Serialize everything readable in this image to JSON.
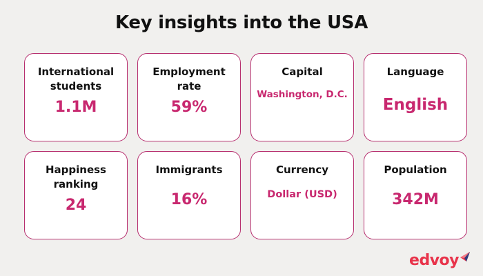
{
  "title": "Key insights into the USA",
  "cards": [
    {
      "label": "International students",
      "value": "1.1M"
    },
    {
      "label": "Employment rate",
      "value": "59%"
    },
    {
      "label": "Capital",
      "value": "Washington, D.C."
    },
    {
      "label": "Language",
      "value": "English"
    },
    {
      "label": "Happiness ranking",
      "value": "24"
    },
    {
      "label": "Immigrants",
      "value": "16%"
    },
    {
      "label": "Currency",
      "value": "Dollar (USD)"
    },
    {
      "label": "Population",
      "value": "342M"
    }
  ],
  "brand": {
    "name": "edvoy",
    "logo_icon": "paper-plane-icon"
  },
  "colors": {
    "background": "#f1f0ee",
    "accent": "#c8286f",
    "card_border": "#b72f6f",
    "brand": "#e8334a",
    "brand_dark": "#2f3c7e"
  }
}
